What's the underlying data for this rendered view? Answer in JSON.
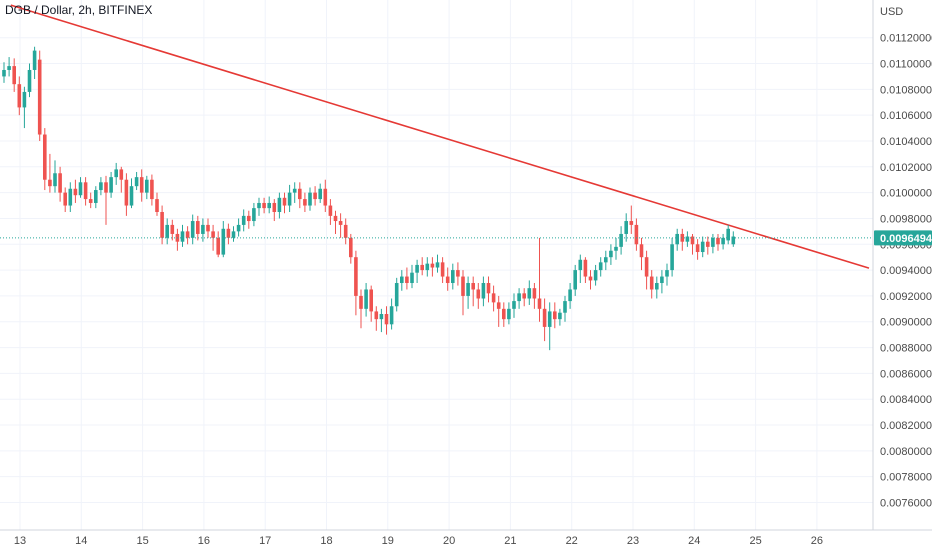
{
  "header": {
    "symbol_title": "DGB / Dollar, 2h, BITFINEX"
  },
  "price_axis": {
    "currency_label": "USD",
    "ticks": [
      "0.00760000",
      "0.00780000",
      "0.00800000",
      "0.00820000",
      "0.00840000",
      "0.00860000",
      "0.00880000",
      "0.00900000",
      "0.00920000",
      "0.00940000",
      "0.00960000",
      "0.00980000",
      "0.01000000",
      "0.01020000",
      "0.01040000",
      "0.01060000",
      "0.01080000",
      "0.01100000",
      "0.01120000"
    ],
    "last_price_label": "0.00964940"
  },
  "colors": {
    "up": "#26a69a",
    "down": "#ef5350",
    "trendline": "#e53935",
    "grid": "#f0f3fa",
    "price_line": "#26a69a"
  },
  "chart_data": {
    "type": "candlestick",
    "title": "DGB / Dollar, 2h, BITFINEX",
    "interval": "2h",
    "ylabel": "USD",
    "ylim": [
      0.00748,
      0.01143
    ],
    "x_ticks": [
      "13",
      "14",
      "15",
      "16",
      "17",
      "18",
      "19",
      "20",
      "21",
      "22",
      "23",
      "24",
      "25",
      "26"
    ],
    "x_tick_days": [
      13,
      14,
      15,
      16,
      17,
      18,
      19,
      20,
      21,
      22,
      23,
      24,
      25,
      26
    ],
    "last_price": 0.0096494,
    "grid": true,
    "candles": [
      [
        0,
        0.0109,
        0.01095,
        0.01101,
        0.01085
      ],
      [
        1,
        0.01095,
        0.01098,
        0.01105,
        0.0109
      ],
      [
        2,
        0.01098,
        0.01084,
        0.01104,
        0.01078
      ],
      [
        3,
        0.01084,
        0.01066,
        0.0109,
        0.0106
      ],
      [
        4,
        0.01066,
        0.01078,
        0.01082,
        0.0105
      ],
      [
        5,
        0.01078,
        0.01095,
        0.011,
        0.01074
      ],
      [
        6,
        0.01095,
        0.0111,
        0.01113,
        0.01088
      ],
      [
        7,
        0.01103,
        0.01045,
        0.0111,
        0.0104
      ],
      [
        8,
        0.01045,
        0.0101,
        0.0105,
        0.01002
      ],
      [
        9,
        0.0101,
        0.01005,
        0.0103,
        0.01
      ],
      [
        10,
        0.01005,
        0.01015,
        0.01025,
        0.01
      ],
      [
        11,
        0.01015,
        0.01,
        0.0102,
        0.00993
      ],
      [
        12,
        0.01,
        0.0099,
        0.01004,
        0.00985
      ],
      [
        13,
        0.0099,
        0.01003,
        0.01008,
        0.00985
      ],
      [
        14,
        0.01003,
        0.00998,
        0.0101,
        0.00992
      ],
      [
        15,
        0.00998,
        0.01008,
        0.01012,
        0.00996
      ],
      [
        16,
        0.01008,
        0.00995,
        0.01012,
        0.0099
      ],
      [
        17,
        0.00995,
        0.00992,
        0.01,
        0.00988
      ],
      [
        18,
        0.00992,
        0.01002,
        0.01005,
        0.00988
      ],
      [
        19,
        0.01002,
        0.01008,
        0.01012,
        0.00998
      ],
      [
        20,
        0.01008,
        0.01,
        0.01013,
        0.00975
      ],
      [
        21,
        0.01,
        0.01012,
        0.01016,
        0.00996
      ],
      [
        22,
        0.01012,
        0.01018,
        0.01023,
        0.01006
      ],
      [
        23,
        0.01018,
        0.0101,
        0.0102,
        0.01
      ],
      [
        24,
        0.0101,
        0.0099,
        0.01015,
        0.00982
      ],
      [
        25,
        0.0099,
        0.01005,
        0.01011,
        0.00988
      ],
      [
        26,
        0.01005,
        0.01012,
        0.01016,
        0.01002
      ],
      [
        27,
        0.01012,
        0.01,
        0.01018,
        0.00993
      ],
      [
        28,
        0.01,
        0.0101,
        0.01013,
        0.00995
      ],
      [
        29,
        0.0101,
        0.00995,
        0.01014,
        0.0099
      ],
      [
        30,
        0.00995,
        0.00985,
        0.01,
        0.00982
      ],
      [
        31,
        0.00985,
        0.00965,
        0.0099,
        0.0096
      ],
      [
        32,
        0.00965,
        0.00975,
        0.0098,
        0.0096
      ],
      [
        33,
        0.00975,
        0.00968,
        0.00979,
        0.00963
      ],
      [
        34,
        0.00968,
        0.00962,
        0.00972,
        0.00955
      ],
      [
        35,
        0.00962,
        0.0097,
        0.00975,
        0.00958
      ],
      [
        36,
        0.0097,
        0.00965,
        0.00974,
        0.0096
      ],
      [
        37,
        0.00965,
        0.00978,
        0.00983,
        0.0096
      ],
      [
        38,
        0.00978,
        0.00968,
        0.00982,
        0.00963
      ],
      [
        39,
        0.00968,
        0.00975,
        0.0098,
        0.00962
      ],
      [
        40,
        0.00975,
        0.0097,
        0.0098,
        0.00965
      ],
      [
        41,
        0.0097,
        0.00965,
        0.00975,
        0.00955
      ],
      [
        42,
        0.00965,
        0.00952,
        0.0097,
        0.0095
      ],
      [
        43,
        0.00952,
        0.00972,
        0.00978,
        0.0095
      ],
      [
        44,
        0.00972,
        0.00965,
        0.00976,
        0.0096
      ],
      [
        45,
        0.00965,
        0.0097,
        0.00974,
        0.00962
      ],
      [
        46,
        0.0097,
        0.00975,
        0.0098,
        0.00966
      ],
      [
        47,
        0.00975,
        0.00982,
        0.00987,
        0.0097
      ],
      [
        48,
        0.00982,
        0.00978,
        0.00986,
        0.00972
      ],
      [
        49,
        0.00978,
        0.00988,
        0.00992,
        0.00974
      ],
      [
        50,
        0.00988,
        0.00992,
        0.00996,
        0.00982
      ],
      [
        51,
        0.00992,
        0.00988,
        0.00996,
        0.00984
      ],
      [
        52,
        0.00988,
        0.00992,
        0.00997,
        0.00984
      ],
      [
        53,
        0.00992,
        0.00985,
        0.00995,
        0.00978
      ],
      [
        54,
        0.00985,
        0.00996,
        0.01,
        0.0098
      ],
      [
        55,
        0.00996,
        0.0099,
        0.01,
        0.00984
      ],
      [
        56,
        0.0099,
        0.01,
        0.01006,
        0.00985
      ],
      [
        57,
        0.01,
        0.01003,
        0.01008,
        0.00992
      ],
      [
        58,
        0.01003,
        0.00995,
        0.01008,
        0.00988
      ],
      [
        59,
        0.00995,
        0.0099,
        0.01,
        0.00985
      ],
      [
        60,
        0.0099,
        0.01,
        0.01004,
        0.00986
      ],
      [
        61,
        0.01,
        0.00995,
        0.01005,
        0.0099
      ],
      [
        62,
        0.00995,
        0.01003,
        0.01007,
        0.00992
      ],
      [
        63,
        0.01003,
        0.0099,
        0.0101,
        0.00985
      ],
      [
        64,
        0.0099,
        0.00982,
        0.00995,
        0.00975
      ],
      [
        65,
        0.00982,
        0.00978,
        0.00986,
        0.00968
      ],
      [
        66,
        0.00978,
        0.00975,
        0.00984,
        0.00965
      ],
      [
        67,
        0.00975,
        0.00965,
        0.0098,
        0.0096
      ],
      [
        68,
        0.00965,
        0.0095,
        0.00968,
        0.00945
      ],
      [
        69,
        0.0095,
        0.0092,
        0.00955,
        0.00905
      ],
      [
        70,
        0.0092,
        0.0091,
        0.00925,
        0.00895
      ],
      [
        71,
        0.0091,
        0.00925,
        0.0093,
        0.00904
      ],
      [
        72,
        0.00925,
        0.00908,
        0.00928,
        0.009
      ],
      [
        73,
        0.00908,
        0.00902,
        0.00912,
        0.00893
      ],
      [
        74,
        0.00902,
        0.00906,
        0.0091,
        0.00892
      ],
      [
        75,
        0.00906,
        0.00898,
        0.00912,
        0.0089
      ],
      [
        76,
        0.00898,
        0.00912,
        0.00918,
        0.00894
      ],
      [
        77,
        0.00912,
        0.0093,
        0.00934,
        0.00908
      ],
      [
        78,
        0.0093,
        0.00935,
        0.0094,
        0.00924
      ],
      [
        79,
        0.00935,
        0.0093,
        0.00942,
        0.00925
      ],
      [
        80,
        0.0093,
        0.00938,
        0.00944,
        0.00926
      ],
      [
        81,
        0.00938,
        0.00944,
        0.00948,
        0.0093
      ],
      [
        82,
        0.00944,
        0.0094,
        0.0095,
        0.00936
      ],
      [
        83,
        0.0094,
        0.00945,
        0.0095,
        0.00935
      ],
      [
        84,
        0.00945,
        0.00942,
        0.0095,
        0.00935
      ],
      [
        85,
        0.00942,
        0.00946,
        0.00952,
        0.00938
      ],
      [
        86,
        0.00946,
        0.00935,
        0.0095,
        0.0093
      ],
      [
        87,
        0.00935,
        0.0093,
        0.00942,
        0.00924
      ],
      [
        88,
        0.0093,
        0.0094,
        0.00945,
        0.00925
      ],
      [
        89,
        0.0094,
        0.00935,
        0.00946,
        0.00928
      ],
      [
        90,
        0.00935,
        0.0092,
        0.0094,
        0.00905
      ],
      [
        91,
        0.0092,
        0.0093,
        0.00935,
        0.0091
      ],
      [
        92,
        0.0093,
        0.00925,
        0.00935,
        0.00912
      ],
      [
        93,
        0.00925,
        0.00918,
        0.0093,
        0.0091
      ],
      [
        94,
        0.00918,
        0.0093,
        0.00935,
        0.00912
      ],
      [
        95,
        0.0093,
        0.00922,
        0.00935,
        0.00915
      ],
      [
        96,
        0.00922,
        0.00915,
        0.00928,
        0.00908
      ],
      [
        97,
        0.00915,
        0.0091,
        0.0092,
        0.00896
      ],
      [
        98,
        0.0091,
        0.00902,
        0.00915,
        0.00896
      ],
      [
        99,
        0.00902,
        0.0091,
        0.00915,
        0.00898
      ],
      [
        100,
        0.0091,
        0.00916,
        0.00922,
        0.00903
      ],
      [
        101,
        0.00916,
        0.00922,
        0.00926,
        0.0091
      ],
      [
        102,
        0.00922,
        0.00918,
        0.00926,
        0.00912
      ],
      [
        103,
        0.00918,
        0.00926,
        0.00932,
        0.00913
      ],
      [
        104,
        0.00926,
        0.00918,
        0.0093,
        0.0091
      ],
      [
        105,
        0.00918,
        0.0091,
        0.00965,
        0.009
      ],
      [
        106,
        0.0091,
        0.00896,
        0.00918,
        0.00885
      ],
      [
        107,
        0.00896,
        0.00908,
        0.00915,
        0.00878
      ],
      [
        108,
        0.00908,
        0.00902,
        0.00915,
        0.00895
      ],
      [
        109,
        0.00902,
        0.00907,
        0.0091,
        0.00897
      ],
      [
        110,
        0.00907,
        0.00916,
        0.0092,
        0.009
      ],
      [
        111,
        0.00916,
        0.00925,
        0.0093,
        0.0091
      ],
      [
        112,
        0.00925,
        0.0094,
        0.00944,
        0.0092
      ],
      [
        113,
        0.0094,
        0.00948,
        0.00952,
        0.0093
      ],
      [
        114,
        0.00948,
        0.00935,
        0.0095,
        0.0093
      ],
      [
        115,
        0.00935,
        0.00932,
        0.0094,
        0.00925
      ],
      [
        116,
        0.00932,
        0.0094,
        0.00944,
        0.00928
      ],
      [
        117,
        0.0094,
        0.00946,
        0.0095,
        0.00935
      ],
      [
        118,
        0.00946,
        0.0095,
        0.00955,
        0.0094
      ],
      [
        119,
        0.0095,
        0.00955,
        0.0096,
        0.00944
      ],
      [
        120,
        0.00955,
        0.00958,
        0.00965,
        0.00948
      ],
      [
        121,
        0.00958,
        0.00968,
        0.00974,
        0.00952
      ],
      [
        122,
        0.00968,
        0.00978,
        0.00984,
        0.00962
      ],
      [
        123,
        0.00978,
        0.00975,
        0.0099,
        0.00968
      ],
      [
        124,
        0.00975,
        0.0096,
        0.0098,
        0.00955
      ],
      [
        125,
        0.0096,
        0.0095,
        0.00965,
        0.0094
      ],
      [
        126,
        0.0095,
        0.00935,
        0.00955,
        0.00925
      ],
      [
        127,
        0.00935,
        0.00925,
        0.0094,
        0.00918
      ],
      [
        128,
        0.00925,
        0.0093,
        0.00935,
        0.00918
      ],
      [
        129,
        0.0093,
        0.00935,
        0.0094,
        0.00922
      ],
      [
        130,
        0.00935,
        0.0094,
        0.00945,
        0.00928
      ],
      [
        131,
        0.0094,
        0.0096,
        0.00965,
        0.00935
      ],
      [
        132,
        0.0096,
        0.00968,
        0.00972,
        0.00955
      ],
      [
        133,
        0.00968,
        0.00962,
        0.00972,
        0.00955
      ],
      [
        134,
        0.00962,
        0.00966,
        0.0097,
        0.00958
      ],
      [
        135,
        0.00966,
        0.0096,
        0.00968,
        0.00952
      ],
      [
        136,
        0.0096,
        0.00954,
        0.00964,
        0.00948
      ],
      [
        137,
        0.00954,
        0.00962,
        0.00966,
        0.0095
      ],
      [
        138,
        0.00962,
        0.00958,
        0.00966,
        0.00952
      ],
      [
        139,
        0.00958,
        0.00965,
        0.00968,
        0.00953
      ],
      [
        140,
        0.00965,
        0.0096,
        0.00968,
        0.00955
      ],
      [
        141,
        0.0096,
        0.00965,
        0.00968,
        0.00956
      ],
      [
        142,
        0.00963,
        0.00972,
        0.00975,
        0.0096
      ],
      [
        143,
        0.0096,
        0.00966,
        0.0097,
        0.00958
      ]
    ],
    "candle_fields": [
      "index",
      "open",
      "close",
      "high",
      "low"
    ],
    "trendline": {
      "from": {
        "day": 12.85,
        "price": 0.011452
      },
      "to": {
        "day": 26.85,
        "price": 0.009415
      }
    }
  }
}
